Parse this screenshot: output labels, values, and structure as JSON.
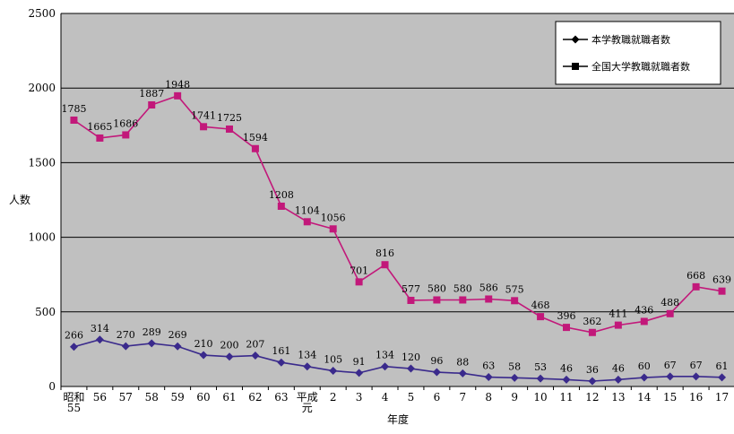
{
  "chart_data": {
    "type": "line",
    "categories": [
      "昭和\n55",
      "56",
      "57",
      "58",
      "59",
      "60",
      "61",
      "62",
      "63",
      "平成\n元",
      "2",
      "3",
      "4",
      "5",
      "6",
      "7",
      "8",
      "9",
      "10",
      "11",
      "12",
      "13",
      "14",
      "15",
      "16",
      "17"
    ],
    "ylabel": "人数",
    "xlabel": "年度",
    "ylim": [
      0,
      2500
    ],
    "yticks": [
      0,
      500,
      1000,
      1500,
      2000,
      2500
    ],
    "grid": true,
    "legend_position": "top-right",
    "series": [
      {
        "name": "本学教職就職者数",
        "color": "#3a2a8c",
        "marker": "diamond",
        "values": [
          266,
          314,
          270,
          289,
          269,
          210,
          200,
          207,
          161,
          134,
          105,
          91,
          134,
          120,
          96,
          88,
          63,
          58,
          53,
          46,
          36,
          46,
          60,
          67,
          67,
          61
        ]
      },
      {
        "name": "全国大学教職就職者数",
        "color": "#c2187a",
        "marker": "square",
        "values": [
          1785,
          1665,
          1686,
          1887,
          1948,
          1741,
          1725,
          1594,
          1208,
          1104,
          1056,
          701,
          816,
          577,
          580,
          580,
          586,
          575,
          468,
          396,
          362,
          411,
          436,
          488,
          668,
          639
        ]
      }
    ]
  }
}
